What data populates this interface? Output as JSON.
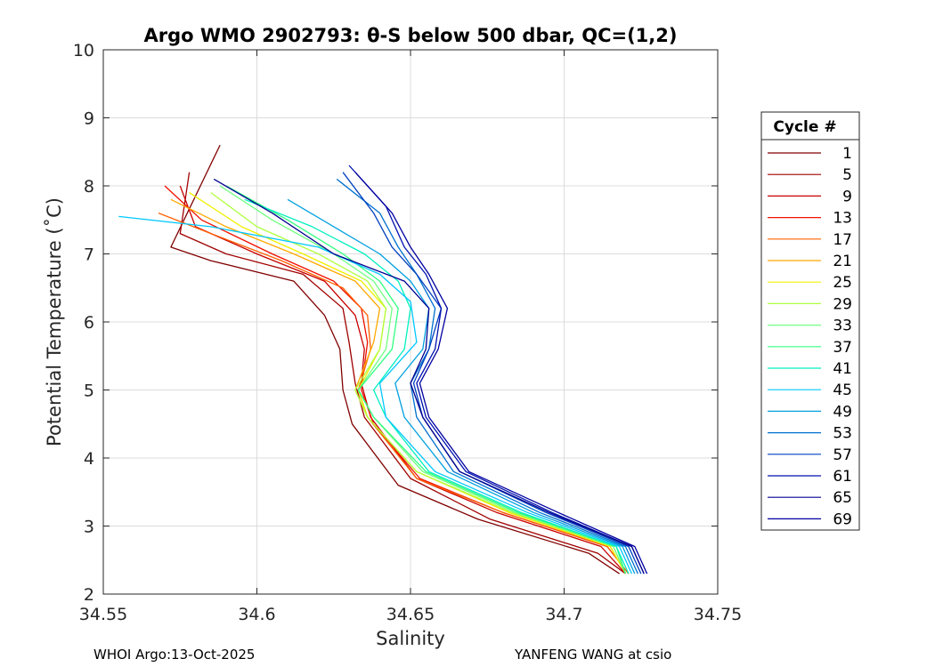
{
  "chart_data": {
    "type": "line",
    "title": "Argo WMO 2902793: θ-S below 500 dbar,  QC=(1,2)",
    "xlabel": "Salinity",
    "ylabel": "Potential Temperature (˚C)",
    "xlim": [
      34.55,
      34.75
    ],
    "ylim": [
      2,
      10
    ],
    "xticks": [
      34.55,
      34.6,
      34.65,
      34.7,
      34.75
    ],
    "yticks": [
      2,
      3,
      4,
      5,
      6,
      7,
      8,
      9,
      10
    ],
    "grid": true,
    "legend": {
      "title": "Cycle #",
      "placement": "right",
      "entries": [
        {
          "label": "1",
          "color": "#800000"
        },
        {
          "label": "5",
          "color": "#a00000"
        },
        {
          "label": "9",
          "color": "#c80000"
        },
        {
          "label": "13",
          "color": "#f01000"
        },
        {
          "label": "17",
          "color": "#ff6000"
        },
        {
          "label": "21",
          "color": "#ffa800"
        },
        {
          "label": "25",
          "color": "#f0f000"
        },
        {
          "label": "29",
          "color": "#b0ff40"
        },
        {
          "label": "33",
          "color": "#70ff80"
        },
        {
          "label": "37",
          "color": "#30ff80"
        },
        {
          "label": "41",
          "color": "#00f0c0"
        },
        {
          "label": "45",
          "color": "#00c8ff"
        },
        {
          "label": "49",
          "color": "#00a0e0"
        },
        {
          "label": "53",
          "color": "#0070d0"
        },
        {
          "label": "57",
          "color": "#0040c0"
        },
        {
          "label": "61",
          "color": "#0010b0"
        },
        {
          "label": "65",
          "color": "#000090"
        },
        {
          "label": "69",
          "color": "#0000a0"
        }
      ]
    },
    "series": [
      {
        "name": "1",
        "color": "#800000",
        "salinity": [
          34.588,
          34.572,
          34.585,
          34.612,
          34.622,
          34.627,
          34.628,
          34.631,
          34.646,
          34.672,
          34.708,
          34.718
        ],
        "theta": [
          8.6,
          7.1,
          6.9,
          6.6,
          6.1,
          5.6,
          5.0,
          4.5,
          3.6,
          3.1,
          2.6,
          2.3
        ]
      },
      {
        "name": "5",
        "color": "#a00000",
        "salinity": [
          34.578,
          34.575,
          34.59,
          34.615,
          34.628,
          34.63,
          34.632,
          34.635,
          34.65,
          34.676,
          34.711,
          34.72
        ],
        "theta": [
          8.2,
          7.3,
          7.0,
          6.7,
          6.2,
          5.7,
          5.1,
          4.6,
          3.7,
          3.1,
          2.6,
          2.3
        ]
      },
      {
        "name": "9",
        "color": "#c80000",
        "salinity": [
          34.575,
          34.58,
          34.6,
          34.622,
          34.632,
          34.635,
          34.634,
          34.637,
          34.652,
          34.678,
          34.712,
          34.72
        ],
        "theta": [
          8.0,
          7.4,
          7.0,
          6.6,
          6.1,
          5.6,
          5.1,
          4.6,
          3.7,
          3.2,
          2.7,
          2.3
        ]
      },
      {
        "name": "13",
        "color": "#f01000",
        "salinity": [
          34.57,
          34.582,
          34.605,
          34.625,
          34.634,
          34.636,
          34.634,
          34.638,
          34.653,
          34.68,
          34.714,
          34.721
        ],
        "theta": [
          8.0,
          7.5,
          7.0,
          6.6,
          6.2,
          5.7,
          5.0,
          4.5,
          3.7,
          3.2,
          2.7,
          2.3
        ]
      },
      {
        "name": "17",
        "color": "#ff6000",
        "salinity": [
          34.568,
          34.585,
          34.608,
          34.628,
          34.636,
          34.637,
          34.633,
          34.636,
          34.652,
          34.68,
          34.714,
          34.721
        ],
        "theta": [
          7.6,
          7.3,
          6.9,
          6.5,
          6.1,
          5.6,
          5.0,
          4.6,
          3.7,
          3.2,
          2.7,
          2.3
        ]
      },
      {
        "name": "21",
        "color": "#ffa800",
        "salinity": [
          34.572,
          34.59,
          34.612,
          34.632,
          34.64,
          34.638,
          34.632,
          34.636,
          34.652,
          34.682,
          34.715,
          34.72
        ],
        "theta": [
          7.8,
          7.4,
          7.0,
          6.6,
          6.2,
          5.7,
          5.0,
          4.6,
          3.8,
          3.2,
          2.7,
          2.3
        ]
      },
      {
        "name": "25",
        "color": "#f0f000",
        "salinity": [
          34.578,
          34.595,
          34.615,
          34.634,
          34.642,
          34.64,
          34.633,
          34.636,
          34.652,
          34.682,
          34.715,
          34.72
        ],
        "theta": [
          7.9,
          7.4,
          7.0,
          6.6,
          6.2,
          5.6,
          5.0,
          4.6,
          3.8,
          3.2,
          2.7,
          2.3
        ]
      },
      {
        "name": "29",
        "color": "#b0ff40",
        "salinity": [
          34.585,
          34.6,
          34.62,
          34.636,
          34.642,
          34.64,
          34.632,
          34.636,
          34.652,
          34.683,
          34.716,
          34.72
        ],
        "theta": [
          7.9,
          7.4,
          7.0,
          6.6,
          6.2,
          5.6,
          5.0,
          4.6,
          3.8,
          3.2,
          2.7,
          2.3
        ]
      },
      {
        "name": "33",
        "color": "#70ff80",
        "salinity": [
          34.588,
          34.605,
          34.625,
          34.638,
          34.644,
          34.642,
          34.633,
          34.638,
          34.654,
          34.684,
          34.716,
          34.72
        ],
        "theta": [
          8.0,
          7.5,
          7.0,
          6.6,
          6.2,
          5.6,
          5.0,
          4.6,
          3.8,
          3.2,
          2.7,
          2.3
        ]
      },
      {
        "name": "37",
        "color": "#30ff80",
        "salinity": [
          34.59,
          34.61,
          34.628,
          34.64,
          34.646,
          34.644,
          34.633,
          34.638,
          34.655,
          34.685,
          34.717,
          34.72
        ],
        "theta": [
          8.0,
          7.5,
          7.0,
          6.6,
          6.2,
          5.6,
          5.0,
          4.6,
          3.8,
          3.2,
          2.7,
          2.3
        ]
      },
      {
        "name": "41",
        "color": "#00f0c0",
        "salinity": [
          34.596,
          34.618,
          34.635,
          34.646,
          34.65,
          34.648,
          34.638,
          34.642,
          34.656,
          34.686,
          34.717,
          34.721
        ],
        "theta": [
          7.8,
          7.4,
          7.0,
          6.6,
          6.2,
          5.6,
          5.0,
          4.6,
          3.8,
          3.2,
          2.7,
          2.3
        ]
      },
      {
        "name": "45",
        "color": "#00c8ff",
        "salinity": [
          34.555,
          34.585,
          34.62,
          34.64,
          34.65,
          34.652,
          34.64,
          34.642,
          34.658,
          34.688,
          34.718,
          34.722
        ],
        "theta": [
          7.55,
          7.4,
          7.1,
          6.7,
          6.3,
          5.7,
          5.1,
          4.6,
          3.8,
          3.2,
          2.7,
          2.3
        ]
      },
      {
        "name": "49",
        "color": "#00a0e0",
        "salinity": [
          34.61,
          34.625,
          34.64,
          34.65,
          34.656,
          34.654,
          34.645,
          34.648,
          34.662,
          34.69,
          34.719,
          34.723
        ],
        "theta": [
          7.8,
          7.4,
          7.0,
          6.6,
          6.2,
          5.6,
          5.1,
          4.6,
          3.8,
          3.2,
          2.7,
          2.3
        ]
      },
      {
        "name": "53",
        "color": "#0070d0",
        "salinity": [
          34.626,
          34.64,
          34.646,
          34.652,
          34.658,
          34.656,
          34.65,
          34.652,
          34.664,
          34.692,
          34.72,
          34.724
        ],
        "theta": [
          8.1,
          7.6,
          7.1,
          6.7,
          6.2,
          5.6,
          5.1,
          4.6,
          3.8,
          3.2,
          2.7,
          2.3
        ]
      },
      {
        "name": "57",
        "color": "#0040c0",
        "salinity": [
          34.628,
          34.638,
          34.644,
          34.652,
          34.66,
          34.656,
          34.651,
          34.654,
          34.666,
          34.694,
          34.721,
          34.725
        ],
        "theta": [
          8.2,
          7.6,
          7.1,
          6.7,
          6.2,
          5.6,
          5.1,
          4.6,
          3.8,
          3.2,
          2.7,
          2.3
        ]
      },
      {
        "name": "61",
        "color": "#0010b0",
        "salinity": [
          34.63,
          34.642,
          34.648,
          34.655,
          34.66,
          34.658,
          34.652,
          34.655,
          34.668,
          34.696,
          34.722,
          34.726
        ],
        "theta": [
          8.3,
          7.7,
          7.1,
          6.7,
          6.2,
          5.6,
          5.1,
          4.6,
          3.8,
          3.2,
          2.7,
          2.3
        ]
      },
      {
        "name": "65",
        "color": "#000090",
        "salinity": [
          34.586,
          34.605,
          34.625,
          34.648,
          34.656,
          34.655,
          34.65,
          34.654,
          34.666,
          34.695,
          34.722,
          34.726
        ],
        "theta": [
          8.1,
          7.6,
          7.0,
          6.6,
          6.2,
          5.6,
          5.1,
          4.6,
          3.8,
          3.2,
          2.7,
          2.3
        ]
      },
      {
        "name": "69",
        "color": "#0000a0",
        "salinity": [
          34.632,
          34.644,
          34.65,
          34.656,
          34.662,
          34.659,
          34.653,
          34.656,
          34.669,
          34.698,
          34.723,
          34.727
        ],
        "theta": [
          8.2,
          7.6,
          7.1,
          6.7,
          6.2,
          5.6,
          5.1,
          4.6,
          3.8,
          3.2,
          2.7,
          2.3
        ]
      }
    ]
  },
  "footer": {
    "left": "WHOI Argo:13-Oct-2025",
    "right": "YANFENG WANG at csio"
  }
}
